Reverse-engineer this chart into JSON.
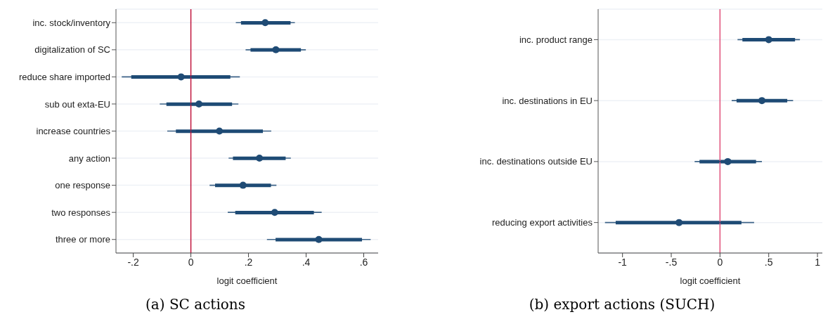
{
  "chart_data": [
    {
      "type": "scatter",
      "title": "(a) SC actions",
      "xlabel": "logit coefficient",
      "orientation": "horizontal",
      "categories": [
        "inc. stock/inventory",
        "digitalization of SC",
        "reduce share imported",
        "sub out exta-EU",
        "increase countries",
        "any action",
        "one response",
        "two responses",
        "three or more"
      ],
      "series": [
        {
          "type": "bar",
          "color": "#1f4b75",
          "base": [
            0.174,
            0.207,
            -0.207,
            -0.085,
            -0.052,
            0.146,
            0.084,
            0.154,
            0.294
          ],
          "values": [
            0.172,
            0.175,
            0.344,
            0.228,
            0.302,
            0.183,
            0.194,
            0.273,
            0.3
          ]
        },
        {
          "color": "#1f4b75",
          "values": [
            0.258,
            0.295,
            -0.034,
            0.028,
            0.099,
            0.238,
            0.181,
            0.291,
            0.444
          ],
          "errors": [
            [
              0.156,
              0.361
            ],
            [
              0.19,
              0.399
            ],
            [
              -0.24,
              0.17
            ],
            [
              -0.108,
              0.165
            ],
            [
              -0.082,
              0.279
            ],
            [
              0.131,
              0.347
            ],
            [
              0.065,
              0.297
            ],
            [
              0.128,
              0.454
            ],
            [
              0.264,
              0.624
            ]
          ]
        }
      ],
      "xlim": [
        -0.26,
        0.65
      ],
      "xticks": [
        {
          "value": -0.2,
          "label": "-.2"
        },
        0,
        {
          "value": 0.2,
          "label": ".2"
        },
        {
          "value": 0.4,
          "label": ".4"
        },
        {
          "value": 0.6,
          "label": ".6"
        }
      ],
      "ref_lines": [
        {
          "axis": "x",
          "value": 0,
          "color": "#c0143c"
        }
      ],
      "grid": "y",
      "marker": "circle"
    },
    {
      "type": "scatter",
      "title": "(b) export actions (SUCH)",
      "xlabel": "logit coefficient",
      "orientation": "horizontal",
      "categories": [
        "inc. product range",
        "inc. destinations in EU",
        "inc. destinations outside EU",
        "reducing export activities"
      ],
      "series": [
        {
          "type": "bar",
          "color": "#1f4b75",
          "base": [
            0.23,
            0.17,
            -0.21,
            -1.07
          ],
          "values": [
            0.54,
            0.52,
            0.58,
            1.29
          ]
        },
        {
          "color": "#1f4b75",
          "values": [
            0.5,
            0.43,
            0.08,
            -0.42
          ],
          "errors": [
            [
              0.18,
              0.82
            ],
            [
              0.12,
              0.75
            ],
            [
              -0.26,
              0.43
            ],
            [
              -1.18,
              0.35
            ]
          ]
        }
      ],
      "xlim": [
        -1.25,
        1.05
      ],
      "xticks": [
        -1,
        {
          "value": -0.5,
          "label": "-.5"
        },
        0,
        {
          "value": 0.5,
          "label": ".5"
        },
        1
      ],
      "ref_lines": [
        {
          "axis": "x",
          "value": 0,
          "color": "#e0507a"
        }
      ],
      "grid": "y",
      "marker": "circle"
    }
  ]
}
